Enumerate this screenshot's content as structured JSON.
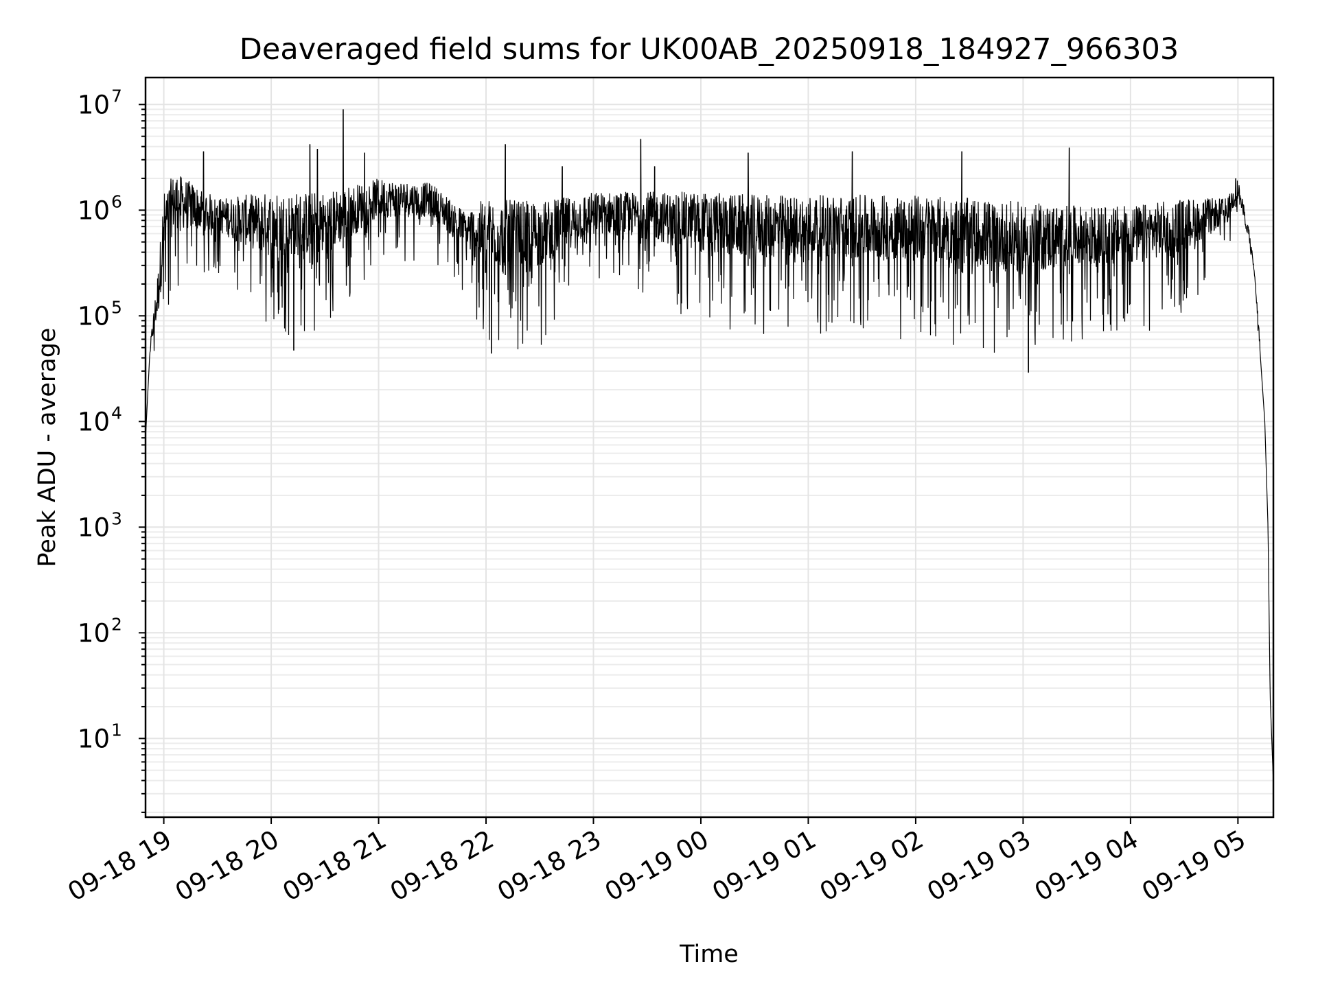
{
  "chart_data": {
    "type": "line",
    "title": "Deaveraged field sums for UK00AB_20250918_184927_966303",
    "xlabel": "Time",
    "ylabel": "Peak ADU - average",
    "yscale": "log",
    "ylim": [
      1.8,
      18000000
    ],
    "xlim_hours_from_0918_1900": [
      -0.17,
      10.33
    ],
    "grid": "on",
    "x_ticks": [
      {
        "label": "09-18 19",
        "hour": 0
      },
      {
        "label": "09-18 20",
        "hour": 1
      },
      {
        "label": "09-18 21",
        "hour": 2
      },
      {
        "label": "09-18 22",
        "hour": 3
      },
      {
        "label": "09-18 23",
        "hour": 4
      },
      {
        "label": "09-19 00",
        "hour": 5
      },
      {
        "label": "09-19 01",
        "hour": 6
      },
      {
        "label": "09-19 02",
        "hour": 7
      },
      {
        "label": "09-19 03",
        "hour": 8
      },
      {
        "label": "09-19 04",
        "hour": 9
      },
      {
        "label": "09-19 05",
        "hour": 10
      }
    ],
    "y_ticks": [
      {
        "base": "10",
        "exp": "1",
        "value": 10
      },
      {
        "base": "10",
        "exp": "2",
        "value": 100
      },
      {
        "base": "10",
        "exp": "3",
        "value": 1000
      },
      {
        "base": "10",
        "exp": "4",
        "value": 10000
      },
      {
        "base": "10",
        "exp": "5",
        "value": 100000
      },
      {
        "base": "10",
        "exp": "6",
        "value": 1000000
      },
      {
        "base": "10",
        "exp": "7",
        "value": 10000000
      }
    ],
    "series": [
      {
        "name": "Deaveraged field sum",
        "color": "#000000",
        "envelope_points": [
          {
            "hour": -0.17,
            "upper": 7000,
            "lower": 7000
          },
          {
            "hour": -0.13,
            "upper": 50000,
            "lower": 40000
          },
          {
            "hour": -0.05,
            "upper": 310000,
            "lower": 25000
          },
          {
            "hour": 0.0,
            "upper": 1500000,
            "lower": 50000
          },
          {
            "hour": 0.1,
            "upper": 2300000,
            "lower": 150000
          },
          {
            "hour": 0.5,
            "upper": 1300000,
            "lower": 250000
          },
          {
            "hour": 1.0,
            "upper": 1500000,
            "lower": 60000
          },
          {
            "hour": 1.5,
            "upper": 1500000,
            "lower": 70000
          },
          {
            "hour": 2.0,
            "upper": 2000000,
            "lower": 300000
          },
          {
            "hour": 2.5,
            "upper": 1800000,
            "lower": 350000
          },
          {
            "hour": 2.8,
            "upper": 1000000,
            "lower": 150000
          },
          {
            "hour": 3.0,
            "upper": 1300000,
            "lower": 45000
          },
          {
            "hour": 3.5,
            "upper": 1200000,
            "lower": 50000
          },
          {
            "hour": 4.0,
            "upper": 1500000,
            "lower": 200000
          },
          {
            "hour": 4.5,
            "upper": 1500000,
            "lower": 150000
          },
          {
            "hour": 5.0,
            "upper": 1500000,
            "lower": 80000
          },
          {
            "hour": 5.5,
            "upper": 1400000,
            "lower": 60000
          },
          {
            "hour": 6.0,
            "upper": 1400000,
            "lower": 70000
          },
          {
            "hour": 6.5,
            "upper": 1400000,
            "lower": 60000
          },
          {
            "hour": 7.0,
            "upper": 1400000,
            "lower": 60000
          },
          {
            "hour": 7.5,
            "upper": 1300000,
            "lower": 50000
          },
          {
            "hour": 8.0,
            "upper": 1200000,
            "lower": 35000
          },
          {
            "hour": 8.5,
            "upper": 1100000,
            "lower": 60000
          },
          {
            "hour": 9.0,
            "upper": 1100000,
            "lower": 60000
          },
          {
            "hour": 9.5,
            "upper": 1300000,
            "lower": 100000
          },
          {
            "hour": 9.9,
            "upper": 1300000,
            "lower": 400000
          },
          {
            "hour": 10.0,
            "upper": 2000000,
            "lower": 700000
          },
          {
            "hour": 10.1,
            "upper": 700000,
            "lower": 400000
          },
          {
            "hour": 10.15,
            "upper": 300000,
            "lower": 200000
          },
          {
            "hour": 10.2,
            "upper": 70000,
            "lower": 45000
          },
          {
            "hour": 10.25,
            "upper": 10000,
            "lower": 10000
          },
          {
            "hour": 10.28,
            "upper": 1000,
            "lower": 1000
          },
          {
            "hour": 10.3,
            "upper": 25,
            "lower": 25
          },
          {
            "hour": 10.33,
            "upper": 3.8,
            "lower": 3.8
          }
        ],
        "spikes": [
          {
            "hour": 0.37,
            "value": 3600000
          },
          {
            "hour": 1.36,
            "value": 4200000
          },
          {
            "hour": 1.43,
            "value": 3800000
          },
          {
            "hour": 1.67,
            "value": 9000000
          },
          {
            "hour": 1.87,
            "value": 3500000
          },
          {
            "hour": 3.18,
            "value": 4200000
          },
          {
            "hour": 3.71,
            "value": 2600000
          },
          {
            "hour": 4.44,
            "value": 4700000
          },
          {
            "hour": 4.57,
            "value": 2600000
          },
          {
            "hour": 5.44,
            "value": 3500000
          },
          {
            "hour": 6.41,
            "value": 3600000
          },
          {
            "hour": 7.43,
            "value": 3600000
          },
          {
            "hour": 8.43,
            "value": 3900000
          },
          {
            "hour": 9.98,
            "value": 2000000
          }
        ],
        "dips": [
          {
            "hour": 8.05,
            "value": 29000
          },
          {
            "hour": 1.21,
            "value": 47000
          },
          {
            "hour": 3.05,
            "value": 44000
          }
        ]
      }
    ]
  }
}
